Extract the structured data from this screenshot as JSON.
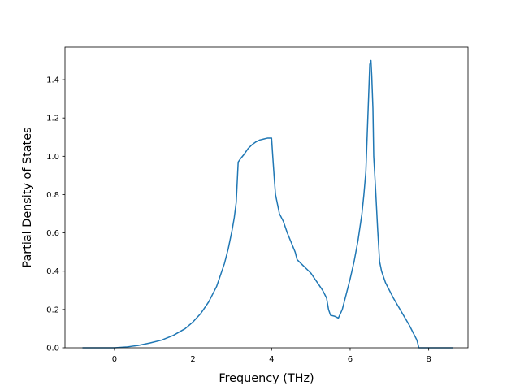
{
  "chart_data": {
    "type": "line",
    "title": "",
    "xlabel": "Frequency (THz)",
    "ylabel": "Partial Density of States",
    "xlim": [
      -1.26,
      9.0
    ],
    "ylim": [
      0.0,
      1.57
    ],
    "xticks": [
      0,
      2,
      4,
      6,
      8
    ],
    "yticks": [
      0.0,
      0.2,
      0.4,
      0.6,
      0.8,
      1.0,
      1.2,
      1.4
    ],
    "xtick_labels": [
      "0",
      "2",
      "4",
      "6",
      "8"
    ],
    "ytick_labels": [
      "0.0",
      "0.2",
      "0.4",
      "0.6",
      "0.8",
      "1.0",
      "1.2",
      "1.4"
    ],
    "grid": false,
    "legend": null,
    "line_color": "#1f77b4",
    "series": [
      {
        "x": [
          -0.8,
          0.0,
          0.3,
          0.6,
          0.9,
          1.2,
          1.5,
          1.8,
          2.0,
          2.2,
          2.4,
          2.6,
          2.8,
          2.9,
          3.0,
          3.05,
          3.1,
          3.15,
          3.2,
          3.3,
          3.4,
          3.5,
          3.6,
          3.7,
          3.8,
          3.9,
          4.0,
          4.03,
          4.07,
          4.1,
          4.2,
          4.3,
          4.4,
          4.5,
          4.6,
          4.65,
          4.7,
          4.8,
          4.9,
          5.0,
          5.1,
          5.2,
          5.3,
          5.4,
          5.45,
          5.5,
          5.6,
          5.7,
          5.8,
          5.9,
          6.0,
          6.1,
          6.2,
          6.3,
          6.35,
          6.4,
          6.45,
          6.5,
          6.53,
          6.55,
          6.58,
          6.6,
          6.65,
          6.7,
          6.75,
          6.8,
          6.9,
          7.0,
          7.1,
          7.2,
          7.3,
          7.4,
          7.5,
          7.6,
          7.7,
          7.75,
          7.8,
          7.85,
          8.0,
          8.6
        ],
        "y": [
          0.0,
          0.0,
          0.004,
          0.012,
          0.025,
          0.04,
          0.065,
          0.1,
          0.135,
          0.18,
          0.24,
          0.32,
          0.44,
          0.52,
          0.62,
          0.68,
          0.76,
          0.97,
          0.985,
          1.01,
          1.04,
          1.06,
          1.075,
          1.085,
          1.09,
          1.095,
          1.095,
          1.0,
          0.88,
          0.8,
          0.7,
          0.66,
          0.6,
          0.55,
          0.5,
          0.46,
          0.45,
          0.43,
          0.41,
          0.39,
          0.36,
          0.33,
          0.3,
          0.26,
          0.2,
          0.17,
          0.165,
          0.155,
          0.2,
          0.28,
          0.36,
          0.45,
          0.56,
          0.7,
          0.8,
          0.92,
          1.2,
          1.48,
          1.5,
          1.42,
          1.25,
          1.0,
          0.82,
          0.62,
          0.45,
          0.4,
          0.34,
          0.3,
          0.26,
          0.225,
          0.19,
          0.155,
          0.12,
          0.08,
          0.04,
          0.0,
          0.0,
          0.0,
          0.0,
          0.0
        ]
      }
    ]
  }
}
